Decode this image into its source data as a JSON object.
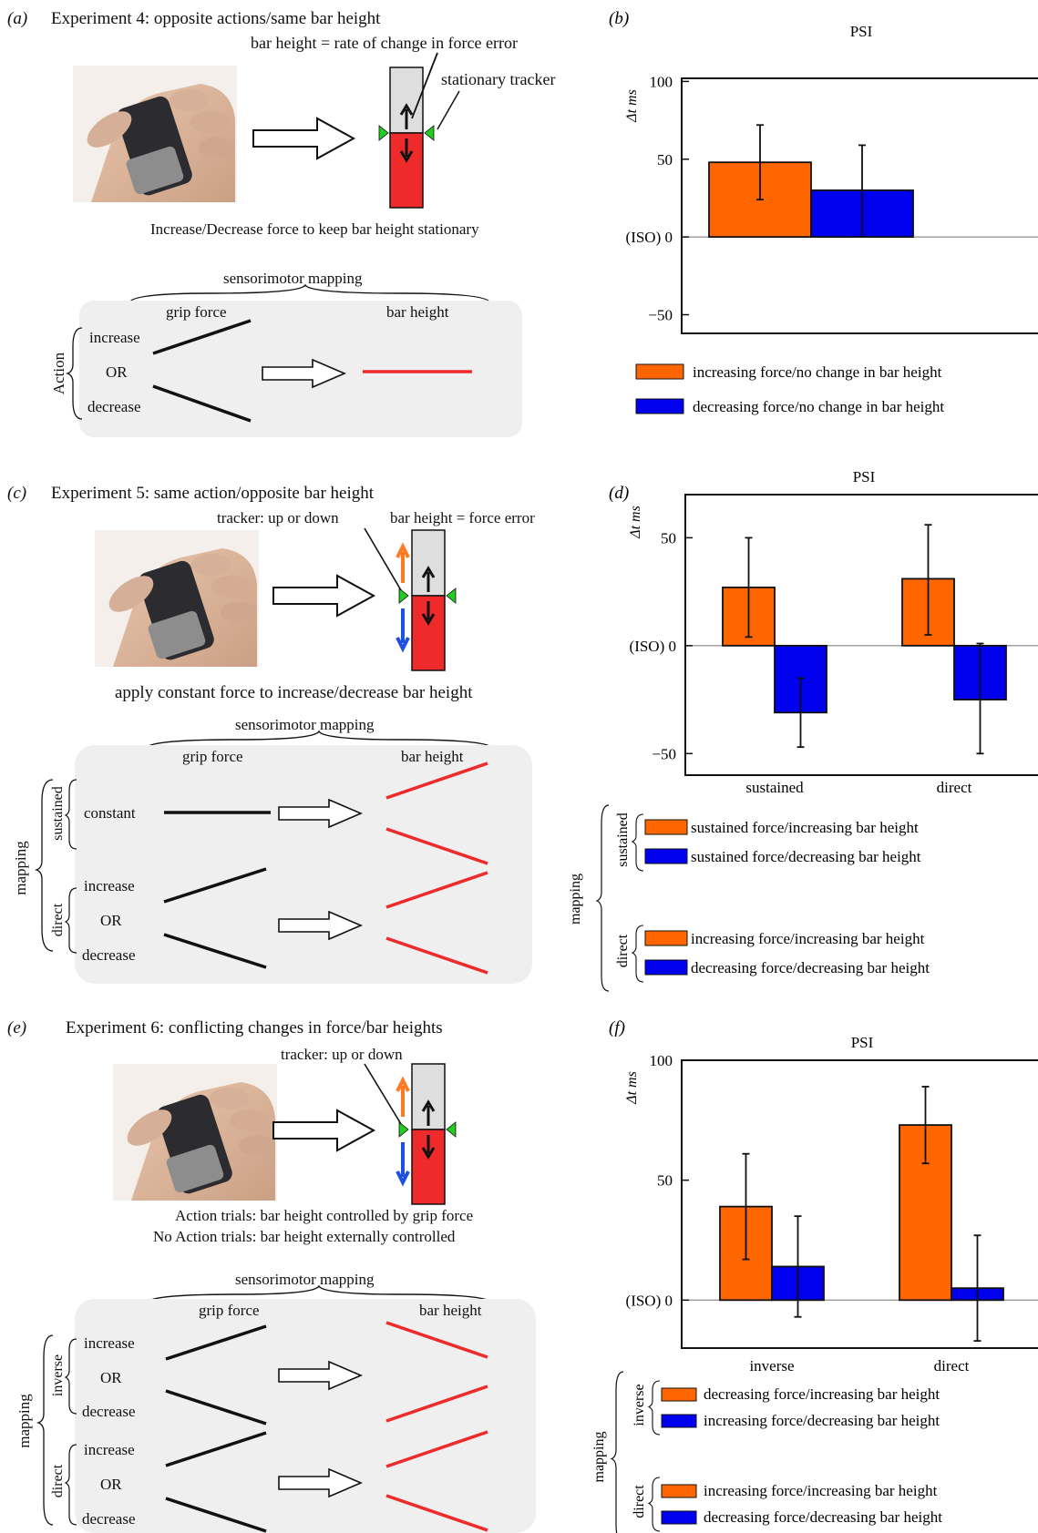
{
  "colors": {
    "orange": "#ff6600",
    "blue": "#0000ee",
    "red": "#ee2a2a",
    "green": "#22cc22",
    "panel_bg": "#efefef",
    "tube": "#dedede",
    "black": "#111111"
  },
  "panel_a": {
    "letter": "(a)",
    "title": "Experiment 4: opposite actions/same bar height",
    "label_bar_height": "bar height = rate of change in force error",
    "label_tracker": "stationary tracker",
    "caption": "Increase/Decrease force to keep bar height stationary",
    "mapping_title": "sensorimotor mapping",
    "col_grip": "grip force",
    "col_bar": "bar height",
    "row_group": "Action",
    "row_increase": "increase",
    "row_or": "OR",
    "row_decrease": "decrease"
  },
  "panel_c": {
    "letter": "(c)",
    "title": "Experiment 5: same action/opposite bar height",
    "label_tracker": "tracker: up or down",
    "label_bar_height": "bar height = force error",
    "caption": "apply constant force to increase/decrease bar height",
    "mapping_title": "sensorimotor mapping",
    "col_grip": "grip force",
    "col_bar": "bar height",
    "outer_group": "mapping",
    "group_sustained": "sustained",
    "group_direct": "direct",
    "row_constant": "constant",
    "row_increase": "increase",
    "row_or": "OR",
    "row_decrease": "decrease"
  },
  "panel_e": {
    "letter": "(e)",
    "title": "Experiment 6: conflicting changes in force/bar heights",
    "label_tracker": "tracker: up or down",
    "caption_1": "Action trials: bar height controlled by grip force",
    "caption_2": "No Action trials: bar height externally controlled",
    "mapping_title": "sensorimotor mapping",
    "col_grip": "grip force",
    "col_bar": "bar height",
    "outer_group": "mapping",
    "group_inverse": "inverse",
    "group_direct": "direct",
    "row_increase": "increase",
    "row_or": "OR",
    "row_decrease": "decrease"
  },
  "chart_data": [
    {
      "panel": "(b)",
      "type": "bar",
      "title": "PSI",
      "ylabel": "Δt ms",
      "ylim": [
        -62,
        102
      ],
      "yticks": [
        {
          "v": 100,
          "label": "100"
        },
        {
          "v": 50,
          "label": "50"
        },
        {
          "v": 0,
          "label": "(ISO) 0"
        },
        {
          "v": -50,
          "label": "−50"
        }
      ],
      "categories": [
        ""
      ],
      "series": [
        {
          "name": "increasing force/no change in bar height",
          "color": "#ff6600",
          "values": [
            48
          ],
          "err_low": [
            24
          ],
          "err_high": [
            72
          ]
        },
        {
          "name": "decreasing force/no change in bar height",
          "color": "#0000ee",
          "values": [
            30
          ],
          "err_low": [
            0
          ],
          "err_high": [
            59
          ]
        }
      ]
    },
    {
      "panel": "(d)",
      "type": "bar",
      "title": "PSI",
      "ylabel": "Δt ms",
      "ylim": [
        -60,
        70
      ],
      "yticks": [
        {
          "v": 50,
          "label": "50"
        },
        {
          "v": 0,
          "label": "(ISO) 0"
        },
        {
          "v": -50,
          "label": "−50"
        }
      ],
      "categories": [
        "sustained",
        "direct"
      ],
      "legend_outer": "mapping",
      "legend_groups": [
        {
          "name": "sustained",
          "entries": [
            {
              "label": "sustained force/increasing bar height",
              "color": "#ff6600"
            },
            {
              "label": "sustained force/decreasing bar height",
              "color": "#0000ee"
            }
          ]
        },
        {
          "name": "direct",
          "entries": [
            {
              "label": "increasing force/increasing bar height",
              "color": "#ff6600"
            },
            {
              "label": "decreasing force/decreasing bar height",
              "color": "#0000ee"
            }
          ]
        }
      ],
      "series": [
        {
          "color": "#ff6600",
          "values": [
            27,
            31
          ],
          "err_low": [
            4,
            5
          ],
          "err_high": [
            50,
            56
          ]
        },
        {
          "color": "#0000ee",
          "values": [
            -31,
            -25
          ],
          "err_low": [
            -47,
            -50
          ],
          "err_high": [
            -15,
            1
          ]
        }
      ]
    },
    {
      "panel": "(f)",
      "type": "bar",
      "title": "PSI",
      "ylabel": "Δt ms",
      "ylim": [
        -20,
        100
      ],
      "yticks": [
        {
          "v": 100,
          "label": "100"
        },
        {
          "v": 50,
          "label": "50"
        },
        {
          "v": 0,
          "label": "(ISO) 0"
        }
      ],
      "categories": [
        "inverse",
        "direct"
      ],
      "legend_outer": "mapping",
      "legend_groups": [
        {
          "name": "inverse",
          "entries": [
            {
              "label": "decreasing force/increasing bar height",
              "color": "#ff6600"
            },
            {
              "label": "increasing force/decreasing bar height",
              "color": "#0000ee"
            }
          ]
        },
        {
          "name": "direct",
          "entries": [
            {
              "label": "increasing force/increasing bar height",
              "color": "#ff6600"
            },
            {
              "label": "decreasing force/decreasing bar height",
              "color": "#0000ee"
            }
          ]
        }
      ],
      "series": [
        {
          "color": "#ff6600",
          "values": [
            39,
            73
          ],
          "err_low": [
            17,
            57
          ],
          "err_high": [
            61,
            89
          ]
        },
        {
          "color": "#0000ee",
          "values": [
            14,
            5
          ],
          "err_low": [
            -7,
            -17
          ],
          "err_high": [
            35,
            27
          ]
        }
      ]
    }
  ]
}
